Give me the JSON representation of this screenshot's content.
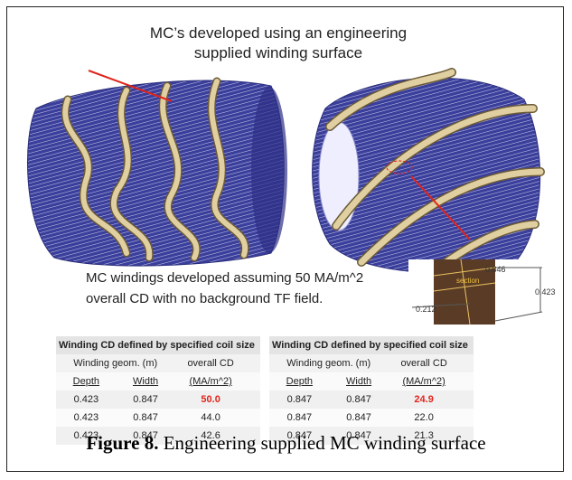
{
  "title": {
    "lines": [
      "MC’s developed using an engineering",
      "supplied winding surface"
    ]
  },
  "note": {
    "lines": [
      "MC windings developed assuming 50 MA/m^2",
      "overall CD with no background TF field."
    ]
  },
  "inset": {
    "labels": [
      "0.846",
      "0.423",
      "0.212",
      "section"
    ]
  },
  "tables": [
    {
      "title": "Winding CD defined by specified coil size",
      "header": [
        [
          "Winding geom. (m)",
          "overall CD"
        ],
        [
          "Depth",
          "Width",
          "(MA/m^2)"
        ]
      ],
      "rows": [
        [
          "0.423",
          "0.847",
          "50.0"
        ],
        [
          "0.423",
          "0.847",
          "44.0"
        ],
        [
          "0.423",
          "0.847",
          "42.6"
        ]
      ]
    },
    {
      "title": "Winding CD defined by specified coil size",
      "header": [
        [
          "Winding geom. (m)",
          "overall CD"
        ],
        [
          "Depth",
          "Width",
          "(MA/m^2)"
        ]
      ],
      "rows": [
        [
          "0.847",
          "0.847",
          "24.9"
        ],
        [
          "0.847",
          "0.847",
          "22.0"
        ],
        [
          "0.847",
          "0.847",
          "21.3"
        ]
      ]
    }
  ],
  "caption": {
    "label": "Figure 8.",
    "text": "Engineering supplied MC winding surface"
  }
}
